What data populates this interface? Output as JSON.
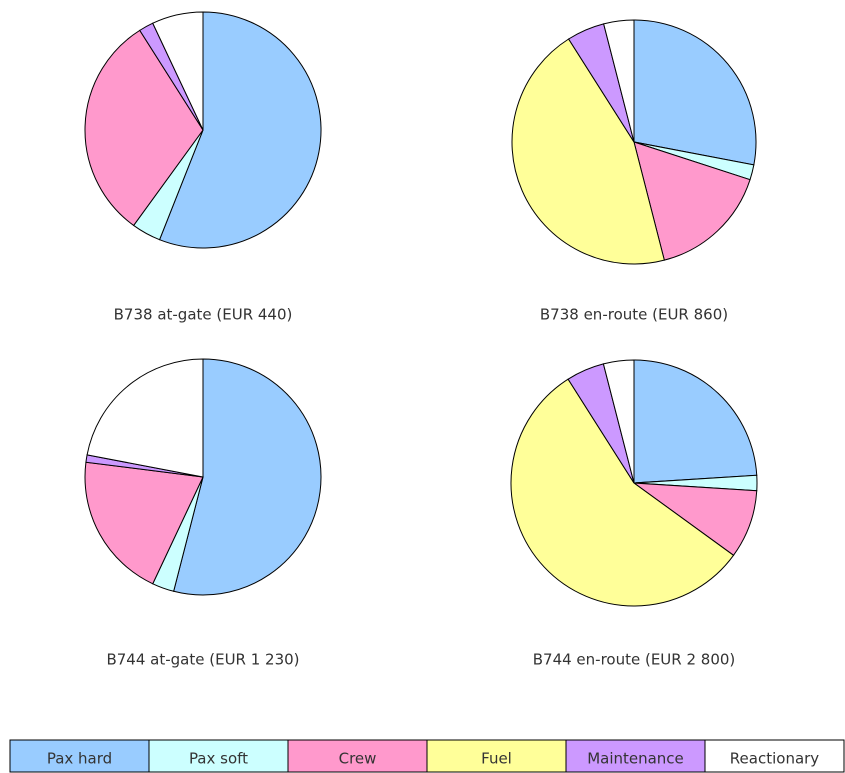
{
  "chart_data": [
    {
      "type": "pie",
      "title": "B738 at-gate (EUR 440)",
      "categories": [
        "Pax hard",
        "Pax soft",
        "Crew",
        "Fuel",
        "Maintenance",
        "Reactionary"
      ],
      "values": [
        56,
        4,
        31,
        0,
        2,
        7
      ],
      "colors": [
        "#99ccff",
        "#ccffff",
        "#ff99cc",
        "#ffff99",
        "#cc99ff",
        "#ffffff"
      ]
    },
    {
      "type": "pie",
      "title": "B738 en-route (EUR 860)",
      "categories": [
        "Pax hard",
        "Pax soft",
        "Crew",
        "Fuel",
        "Maintenance",
        "Reactionary"
      ],
      "values": [
        28,
        2,
        16,
        45,
        5,
        4
      ],
      "colors": [
        "#99ccff",
        "#ccffff",
        "#ff99cc",
        "#ffff99",
        "#cc99ff",
        "#ffffff"
      ]
    },
    {
      "type": "pie",
      "title": "B744 at-gate (EUR 1 230)",
      "categories": [
        "Pax hard",
        "Pax soft",
        "Crew",
        "Fuel",
        "Maintenance",
        "Reactionary"
      ],
      "values": [
        54,
        3,
        20,
        0,
        1,
        22
      ],
      "colors": [
        "#99ccff",
        "#ccffff",
        "#ff99cc",
        "#ffff99",
        "#cc99ff",
        "#ffffff"
      ]
    },
    {
      "type": "pie",
      "title": "B744 en-route (EUR 2 800)",
      "categories": [
        "Pax hard",
        "Pax soft",
        "Crew",
        "Fuel",
        "Maintenance",
        "Reactionary"
      ],
      "values": [
        24,
        2,
        9,
        56,
        5,
        4
      ],
      "colors": [
        "#99ccff",
        "#ccffff",
        "#ff99cc",
        "#ffff99",
        "#cc99ff",
        "#ffffff"
      ]
    }
  ]
}
